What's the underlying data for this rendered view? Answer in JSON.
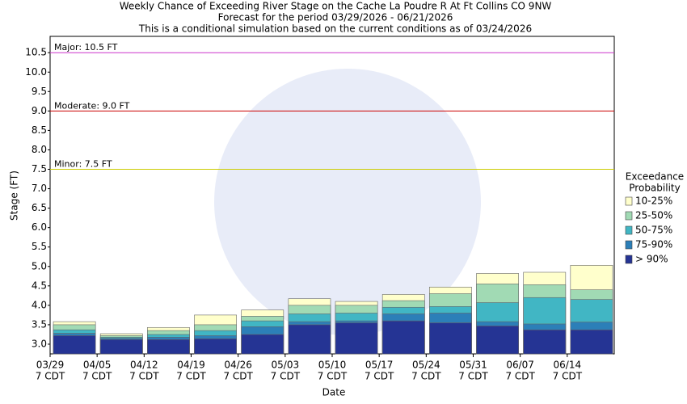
{
  "chart_data": {
    "type": "bar",
    "title": "Weekly Chance of Exceeding River Stage on the Cache La Poudre R At Ft Collins CO 9NW",
    "subtitles": [
      "Forecast for the period 03/29/2026 - 06/21/2026",
      "This is a conditional simulation based on the current conditions as of 03/24/2026"
    ],
    "x_label": "Date",
    "y_label": "Stage (FT)",
    "legend_title": [
      "Exceedance",
      "Probability"
    ],
    "categories": [
      "03/29",
      "04/05",
      "04/12",
      "04/19",
      "04/26",
      "05/03",
      "05/10",
      "05/17",
      "05/24",
      "05/31",
      "06/07",
      "06/14"
    ],
    "category_sublabels": [
      "7 CDT",
      "7 CDT",
      "7 CDT",
      "7 CDT",
      "7 CDT",
      "7 CDT",
      "7 CDT",
      "7 CDT",
      "7 CDT",
      "7 CDT",
      "7 CDT",
      "7 CDT"
    ],
    "series": [
      {
        "name": "10-25%",
        "color": "#ffffcc",
        "values": [
          3.58,
          3.27,
          3.43,
          3.75,
          3.88,
          4.17,
          4.1,
          4.28,
          4.47,
          4.82,
          4.85,
          5.03
        ]
      },
      {
        "name": "25-50%",
        "color": "#a1dab4",
        "values": [
          3.5,
          3.22,
          3.35,
          3.5,
          3.72,
          4.0,
          4.0,
          4.12,
          4.3,
          4.55,
          4.53,
          4.4
        ]
      },
      {
        "name": "50-75%",
        "color": "#41b6c4",
        "values": [
          3.37,
          3.18,
          3.25,
          3.35,
          3.6,
          3.78,
          3.8,
          3.95,
          3.97,
          4.07,
          4.2,
          4.15
        ]
      },
      {
        "name": "75-90%",
        "color": "#2c7fb8",
        "values": [
          3.28,
          3.15,
          3.18,
          3.22,
          3.45,
          3.58,
          3.6,
          3.78,
          3.8,
          3.58,
          3.52,
          3.57
        ]
      },
      {
        "name": "> 90%",
        "color": "#253494",
        "values": [
          3.22,
          3.12,
          3.12,
          3.14,
          3.25,
          3.5,
          3.55,
          3.6,
          3.55,
          3.47,
          3.37,
          3.37
        ]
      }
    ],
    "thresholds": [
      {
        "label": "Major: 10.5 FT",
        "value": 10.5,
        "color": "#cc33cc"
      },
      {
        "label": "Moderate: 9.0 FT",
        "value": 9.0,
        "color": "#cc0000"
      },
      {
        "label": "Minor: 7.5 FT",
        "value": 7.5,
        "color": "#cccc00"
      }
    ],
    "ylim": [
      2.75,
      10.92
    ],
    "yticks": [
      {
        "value": 3,
        "label": "3.0"
      },
      3.5,
      {
        "value": 4,
        "label": "4.0"
      },
      4.5,
      {
        "value": 5,
        "label": "5.0"
      },
      5.5,
      {
        "value": 6,
        "label": "6.0"
      },
      6.5,
      {
        "value": 7,
        "label": "7.0"
      },
      7.5,
      {
        "value": 8,
        "label": "8.0"
      },
      8.5,
      {
        "value": 9,
        "label": "9.0"
      },
      9.5,
      {
        "value": 10,
        "label": "10.0"
      },
      10.5
    ],
    "grid": false
  }
}
